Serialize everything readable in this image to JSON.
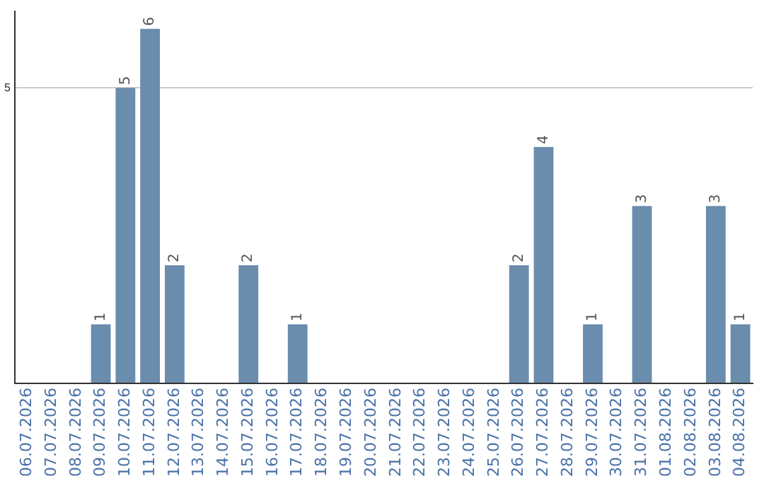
{
  "chart_data": {
    "type": "bar",
    "categories": [
      "06.07.2026",
      "07.07.2026",
      "08.07.2026",
      "09.07.2026",
      "10.07.2026",
      "11.07.2026",
      "12.07.2026",
      "13.07.2026",
      "14.07.2026",
      "15.07.2026",
      "16.07.2026",
      "17.07.2026",
      "18.07.2026",
      "19.07.2026",
      "20.07.2026",
      "21.07.2026",
      "22.07.2026",
      "23.07.2026",
      "24.07.2026",
      "25.07.2026",
      "26.07.2026",
      "27.07.2026",
      "28.07.2026",
      "29.07.2026",
      "30.07.2026",
      "31.07.2026",
      "01.08.2026",
      "02.08.2026",
      "03.08.2026",
      "04.08.2026"
    ],
    "values": [
      0,
      0,
      0,
      1,
      5,
      6,
      2,
      0,
      0,
      2,
      0,
      1,
      0,
      0,
      0,
      0,
      0,
      0,
      0,
      0,
      2,
      4,
      0,
      1,
      0,
      3,
      0,
      0,
      3,
      1
    ],
    "value_labels": [
      null,
      null,
      null,
      "1",
      "5",
      "6",
      "2",
      null,
      null,
      "2",
      null,
      "1",
      null,
      null,
      null,
      null,
      null,
      null,
      null,
      null,
      "2",
      "4",
      null,
      "1",
      null,
      "3",
      null,
      null,
      "3",
      "1"
    ],
    "color": "#6a8cad",
    "ylim": [
      0,
      6.3
    ],
    "yticks": [
      {
        "value": 0,
        "label": null
      },
      5
    ],
    "grid": "y",
    "legend": false
  }
}
